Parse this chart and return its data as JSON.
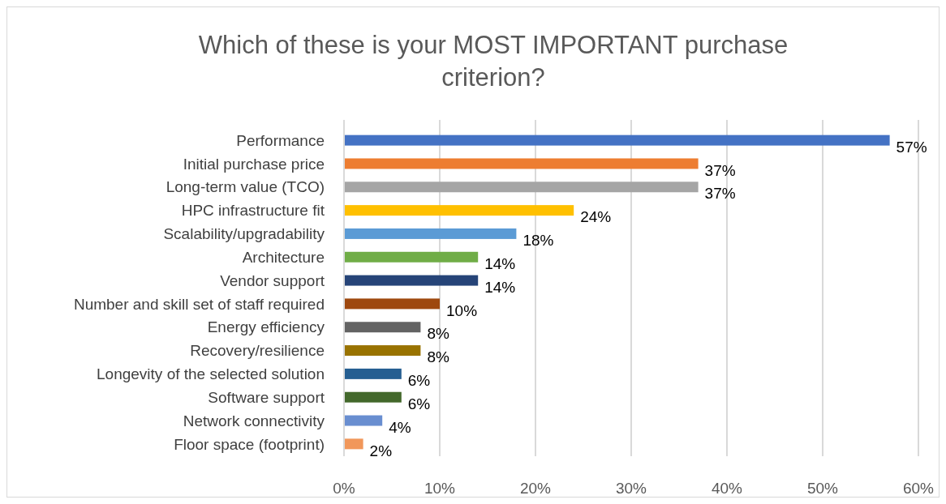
{
  "chart_data": {
    "type": "bar",
    "orientation": "horizontal",
    "title": "Which of these is your MOST IMPORTANT purchase criterion?",
    "categories": [
      "Performance",
      "Initial purchase price",
      "Long-term value (TCO)",
      "HPC infrastructure fit",
      "Scalability/upgradability",
      "Architecture",
      "Vendor support",
      "Number and skill set of staff required",
      "Energy efficiency",
      "Recovery/resilience",
      "Longevity of the selected solution",
      "Software support",
      "Network connectivity",
      "Floor space (footprint)"
    ],
    "values": [
      57,
      37,
      37,
      24,
      18,
      14,
      14,
      10,
      8,
      8,
      6,
      6,
      4,
      2
    ],
    "colors": [
      "#4472c4",
      "#ed7d31",
      "#a5a5a5",
      "#ffc000",
      "#5b9bd5",
      "#70ad47",
      "#264478",
      "#9e480e",
      "#636363",
      "#997300",
      "#255e91",
      "#43682b",
      "#698ed0",
      "#f1975a"
    ],
    "xlim": [
      0,
      60
    ],
    "xticks": [
      {
        "value": 0,
        "label": "0%"
      },
      {
        "value": 10,
        "label": "10%"
      },
      {
        "value": 20,
        "label": "20%"
      },
      {
        "value": 30,
        "label": "30%"
      },
      {
        "value": 40,
        "label": "40%"
      },
      {
        "value": 50,
        "label": "50%"
      },
      {
        "value": 60,
        "label": "60%"
      }
    ],
    "value_labels": [
      "57%",
      "37%",
      "37%",
      "24%",
      "18%",
      "14%",
      "14%",
      "10%",
      "8%",
      "8%",
      "6%",
      "6%",
      "4%",
      "2%"
    ],
    "grid": "x"
  }
}
